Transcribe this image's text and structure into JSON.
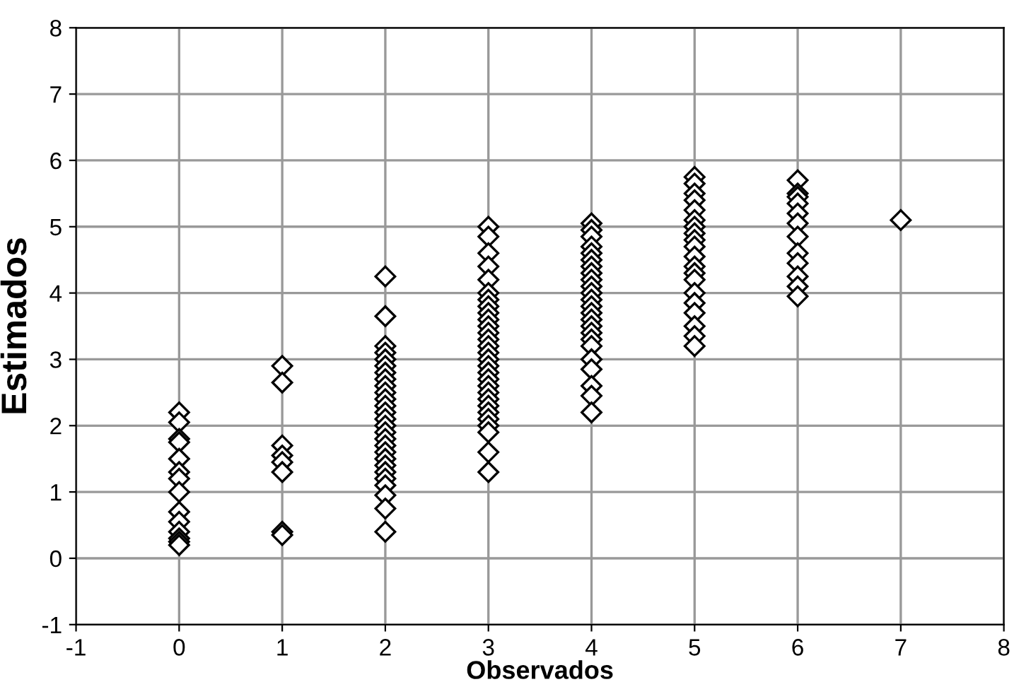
{
  "chart_data": {
    "type": "scatter",
    "xlabel": "Observados",
    "ylabel": "Estimados",
    "x": [
      0,
      0,
      0,
      0,
      0,
      0,
      0,
      0,
      0,
      0,
      0,
      0,
      0,
      0,
      1,
      1,
      1,
      1,
      1,
      1,
      1,
      1,
      2,
      2,
      2,
      2,
      2,
      2,
      2,
      2,
      2,
      2,
      2,
      2,
      2,
      2,
      2,
      2,
      2,
      2,
      2,
      2,
      2,
      2,
      2,
      2,
      2,
      2,
      2,
      3,
      3,
      3,
      3,
      3,
      3,
      3,
      3,
      3,
      3,
      3,
      3,
      3,
      3,
      3,
      3,
      3,
      3,
      3,
      3,
      3,
      3,
      3,
      3,
      3,
      3,
      3,
      3,
      3,
      4,
      4,
      4,
      4,
      4,
      4,
      4,
      4,
      4,
      4,
      4,
      4,
      4,
      4,
      4,
      4,
      4,
      4,
      4,
      4,
      4,
      4,
      4,
      4,
      5,
      5,
      5,
      5,
      5,
      5,
      5,
      5,
      5,
      5,
      5,
      5,
      5,
      5,
      5,
      5,
      5,
      5,
      5,
      5,
      6,
      6,
      6,
      6,
      6,
      6,
      6,
      6,
      6,
      6,
      6,
      6,
      7
    ],
    "series": [
      {
        "color": "#000000",
        "values": [
          2.2,
          2.05,
          1.8,
          1.75,
          1.5,
          1.3,
          1.2,
          1.0,
          0.7,
          0.55,
          0.4,
          0.3,
          0.25,
          0.2,
          2.9,
          2.65,
          1.7,
          1.55,
          1.45,
          1.3,
          0.4,
          0.35,
          4.25,
          3.65,
          3.2,
          3.1,
          3.0,
          2.9,
          2.8,
          2.7,
          2.6,
          2.5,
          2.4,
          2.3,
          2.2,
          2.1,
          2.0,
          1.9,
          1.8,
          1.7,
          1.6,
          1.5,
          1.4,
          1.3,
          1.2,
          1.1,
          0.95,
          0.75,
          0.4,
          5.0,
          4.85,
          4.6,
          4.4,
          4.2,
          4.0,
          3.9,
          3.8,
          3.7,
          3.6,
          3.5,
          3.4,
          3.3,
          3.2,
          3.1,
          3.0,
          2.9,
          2.8,
          2.7,
          2.6,
          2.5,
          2.4,
          2.3,
          2.2,
          2.1,
          2.0,
          1.9,
          1.6,
          1.3,
          5.05,
          4.95,
          4.85,
          4.7,
          4.6,
          4.5,
          4.4,
          4.3,
          4.2,
          4.1,
          4.0,
          3.9,
          3.8,
          3.7,
          3.6,
          3.5,
          3.4,
          3.3,
          3.2,
          3.0,
          2.85,
          2.6,
          2.45,
          2.2,
          5.75,
          5.65,
          5.5,
          5.4,
          5.25,
          5.1,
          5.0,
          4.9,
          4.8,
          4.7,
          4.55,
          4.4,
          4.3,
          4.2,
          4.0,
          3.85,
          3.7,
          3.5,
          3.35,
          3.2,
          5.7,
          5.5,
          5.45,
          5.35,
          5.2,
          5.05,
          4.85,
          4.6,
          4.45,
          4.25,
          4.1,
          3.95,
          5.1
        ]
      }
    ],
    "xlim": [
      -1,
      8
    ],
    "ylim": [
      -1,
      8
    ],
    "xticks": [
      -1,
      0,
      1,
      2,
      3,
      4,
      5,
      6,
      7,
      8
    ],
    "yticks": [
      -1,
      0,
      1,
      2,
      3,
      4,
      5,
      6,
      7,
      8
    ],
    "grid": true,
    "marker": "diamond"
  }
}
